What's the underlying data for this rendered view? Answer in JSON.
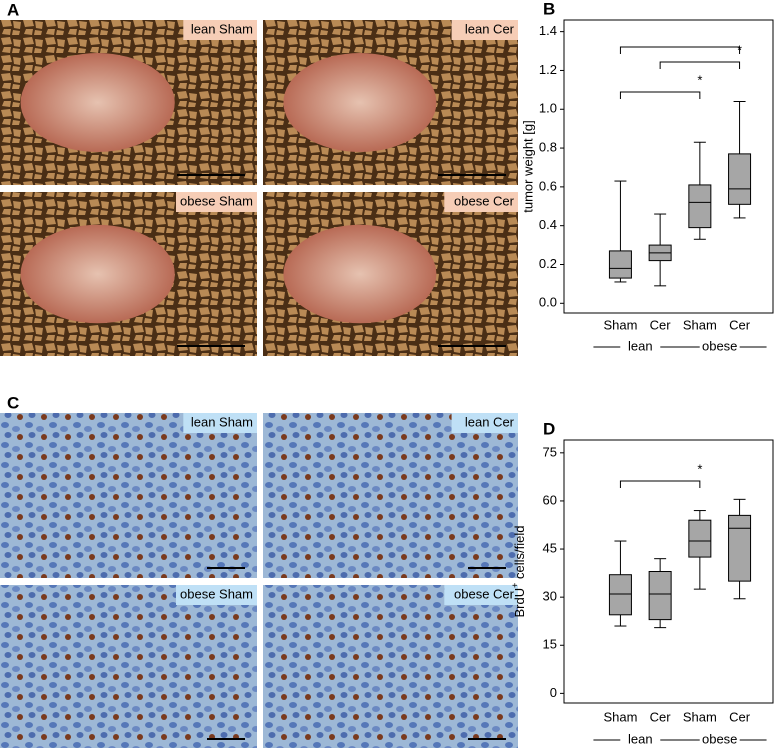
{
  "panels": {
    "a": {
      "letter": "A",
      "images": [
        "lean Sham",
        "lean Cer",
        "obese Sham",
        "obese Cer"
      ]
    },
    "c": {
      "letter": "C",
      "images": [
        "lean Sham",
        "lean Cer",
        "obese Sham",
        "obese Cer"
      ]
    }
  },
  "chart_data": [
    {
      "type": "box",
      "letter": "B",
      "ylabel": "tumor weight [g]",
      "categories": [
        "Sham",
        "Cer",
        "Sham",
        "Cer"
      ],
      "groups": [
        "lean",
        "obese"
      ],
      "boxes": [
        {
          "min": 0.11,
          "q1": 0.13,
          "median": 0.18,
          "q3": 0.27,
          "max": 0.63
        },
        {
          "min": 0.09,
          "q1": 0.22,
          "median": 0.26,
          "q3": 0.3,
          "max": 0.46
        },
        {
          "min": 0.33,
          "q1": 0.39,
          "median": 0.52,
          "q3": 0.61,
          "max": 0.83
        },
        {
          "min": 0.44,
          "q1": 0.51,
          "median": 0.59,
          "q3": 0.77,
          "max": 1.04
        }
      ],
      "color": "#a6a6a6",
      "ylim": [
        -0.05,
        1.46
      ],
      "yticks": [
        {
          "value": 0,
          "label": "0.0"
        },
        0.2,
        0.4,
        0.6,
        0.8,
        {
          "value": 1,
          "label": "1.0"
        },
        1.2,
        1.4
      ],
      "annotations": [
        "*",
        "*"
      ]
    },
    {
      "type": "box",
      "letter": "D",
      "ylabel": "BrdU",
      "ylabel_sup": "+",
      "ylabel_rest": " cells/field",
      "categories": [
        "Sham",
        "Cer",
        "Sham",
        "Cer"
      ],
      "groups": [
        "lean",
        "obese"
      ],
      "boxes": [
        {
          "min": 21,
          "q1": 24.5,
          "median": 31,
          "q3": 37,
          "max": 47.5
        },
        {
          "min": 20.5,
          "q1": 23,
          "median": 31,
          "q3": 38,
          "max": 42
        },
        {
          "min": 32.5,
          "q1": 42.5,
          "median": 47.5,
          "q3": 54,
          "max": 57
        },
        {
          "min": 29.5,
          "q1": 35,
          "median": 51.5,
          "q3": 55.5,
          "max": 60.5
        }
      ],
      "color": "#a6a6a6",
      "ylim": [
        -3,
        79
      ],
      "yticks": [
        0,
        15,
        30,
        45,
        60,
        75
      ],
      "annotations": [
        "*"
      ]
    }
  ]
}
